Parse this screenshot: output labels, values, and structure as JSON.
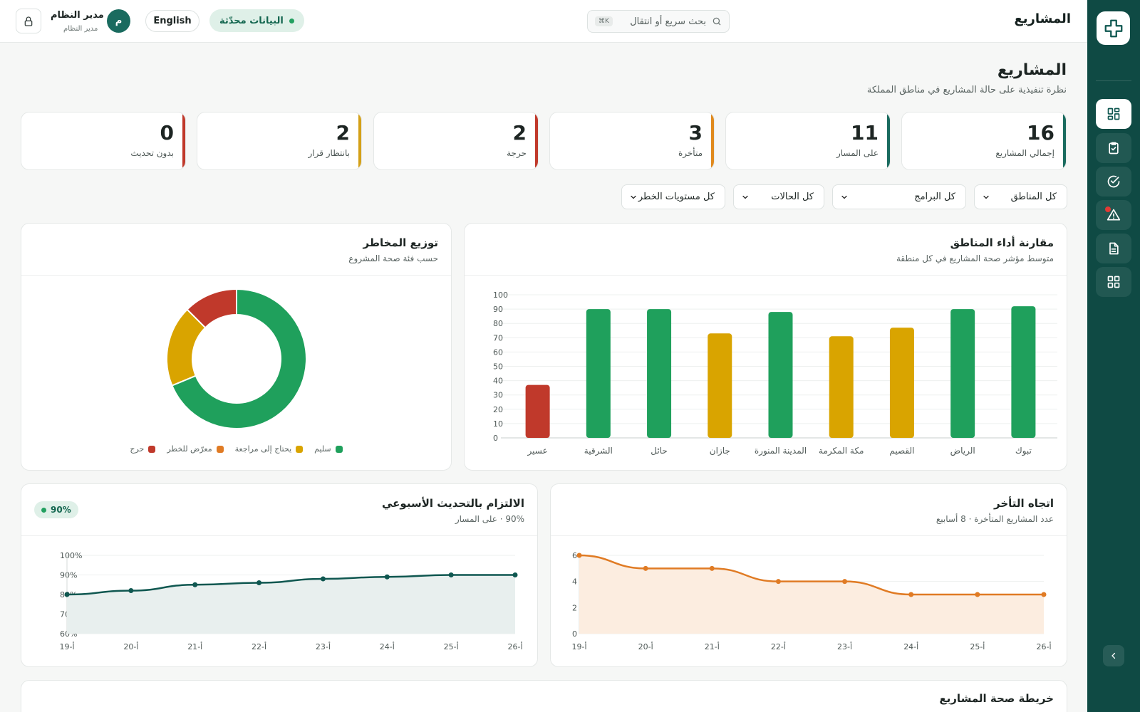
{
  "header": {
    "title": "المشاريع",
    "search_placeholder": "بحث سريع أو انتقال",
    "search_shortcut": "⌘K",
    "status_label": "البيانات محدّثة",
    "lang_label": "English",
    "user_initial": "م",
    "user_name": "مدير النظام",
    "user_role": "مدير النظام"
  },
  "page": {
    "title": "المشاريع",
    "subtitle": "نظرة تنفيذية على حالة المشاريع في مناطق المملكة"
  },
  "kpis": [
    {
      "value": "16",
      "label": "إجمالي المشاريع",
      "color": "#1a6b5f"
    },
    {
      "value": "11",
      "label": "على المسار",
      "color": "#1a6b5f"
    },
    {
      "value": "3",
      "label": "متأخرة",
      "color": "#e08a1e"
    },
    {
      "value": "2",
      "label": "حرجة",
      "color": "#c0392b"
    },
    {
      "value": "2",
      "label": "بانتظار قرار",
      "color": "#d4a017"
    },
    {
      "value": "0",
      "label": "بدون تحديث",
      "color": "#c0392b"
    }
  ],
  "filters": {
    "regions": "كل المناطق",
    "programs": "كل البرامج",
    "statuses": "كل الحالات",
    "risk_levels": "كل مستويات الخطر"
  },
  "region_chart": {
    "title": "مقارنة أداء المناطق",
    "subtitle": "متوسط مؤشر صحة المشاريع في كل منطقة"
  },
  "risk_chart": {
    "title": "توزيع المخاطر",
    "subtitle": "حسب فئة صحة المشروع"
  },
  "delay_chart": {
    "title": "اتجاه التأخر",
    "subtitle": "عدد المشاريع المتأخرة · 8 أسابيع"
  },
  "compliance_chart": {
    "title": "الالتزام بالتحديث الأسبوعي",
    "subtitle": "90% · على المسار",
    "badge": "90%"
  },
  "map_section": {
    "title": "خريطة صحة المشاريع"
  },
  "colors": {
    "green": "#1fa05c",
    "yellow": "#d9a400",
    "red": "#c0392b",
    "orange": "#e07b24",
    "teal": "#0f5750"
  },
  "chart_data": [
    {
      "type": "bar",
      "categories": [
        "تبوك",
        "الرياض",
        "القصيم",
        "مكة المكرمة",
        "المدينة المنورة",
        "جازان",
        "حائل",
        "الشرقية",
        "عسير"
      ],
      "values": [
        92,
        90,
        77,
        71,
        88,
        73,
        90,
        90,
        37
      ],
      "colors": [
        "#1fa05c",
        "#1fa05c",
        "#d9a400",
        "#d9a400",
        "#1fa05c",
        "#d9a400",
        "#1fa05c",
        "#1fa05c",
        "#c0392b"
      ],
      "ylim": [
        0,
        100
      ],
      "yticks": [
        0,
        10,
        20,
        30,
        40,
        50,
        60,
        70,
        80,
        90,
        100
      ],
      "grid": true
    },
    {
      "type": "pie",
      "donut": true,
      "categories": [
        "سليم",
        "يحتاج إلى مراجعة",
        "معرّض للخطر",
        "حرج"
      ],
      "values": [
        11,
        3,
        0,
        2
      ],
      "colors": [
        "#1fa05c",
        "#d9a400",
        "#e07b24",
        "#c0392b"
      ],
      "legend": "bottom"
    },
    {
      "type": "area",
      "x": [
        "أ-19",
        "أ-20",
        "أ-21",
        "أ-22",
        "أ-23",
        "أ-24",
        "أ-25",
        "أ-26"
      ],
      "values": [
        6,
        5,
        5,
        4,
        4,
        3,
        3,
        3
      ],
      "ylim": [
        0,
        6
      ],
      "yticks": [
        0,
        2,
        4,
        6
      ],
      "color": "#e07b24",
      "grid": true
    },
    {
      "type": "area",
      "x": [
        "أ-19",
        "أ-20",
        "أ-21",
        "أ-22",
        "أ-23",
        "أ-24",
        "أ-25",
        "أ-26"
      ],
      "values": [
        80,
        82,
        85,
        86,
        88,
        89,
        90,
        90
      ],
      "ylim": [
        60,
        100
      ],
      "yticks": [
        "60%",
        "70%",
        "80%",
        "90%",
        "100%"
      ],
      "color": "#0f5750",
      "grid": true
    }
  ]
}
